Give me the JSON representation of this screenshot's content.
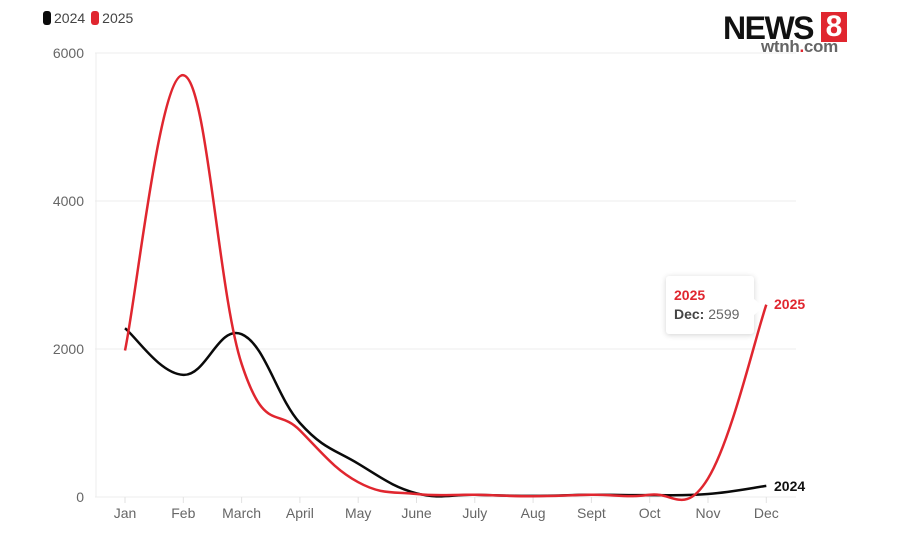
{
  "legend": [
    {
      "label": "2024",
      "color": "#0a0a0a"
    },
    {
      "label": "2025",
      "color": "#e0262f"
    }
  ],
  "logo": {
    "brand": "NEWS",
    "number": "8",
    "domain_prefix": "wtnh",
    "domain_dot": ".",
    "domain_suffix": "com"
  },
  "tooltip": {
    "series": "2025",
    "key": "Dec:",
    "value": "2599"
  },
  "end_labels": {
    "s2025": "2025",
    "s2024": "2024"
  },
  "chart_data": {
    "type": "line",
    "title": "",
    "xlabel": "",
    "ylabel": "",
    "categories": [
      "Jan",
      "Feb",
      "March",
      "April",
      "May",
      "June",
      "July",
      "Aug",
      "Sept",
      "Oct",
      "Nov",
      "Dec"
    ],
    "series": [
      {
        "name": "2024",
        "color": "#0a0a0a",
        "values": [
          2280,
          1650,
          2200,
          1000,
          450,
          50,
          30,
          15,
          30,
          25,
          40,
          150
        ]
      },
      {
        "name": "2025",
        "color": "#e0262f",
        "values": [
          1980,
          5700,
          1800,
          900,
          200,
          40,
          30,
          10,
          30,
          30,
          250,
          2599
        ]
      }
    ],
    "yticks": [
      0,
      2000,
      4000,
      6000
    ],
    "ylim": [
      0,
      6000
    ],
    "grid": true,
    "legend_position": "top-left",
    "smooth": true,
    "annotations": [
      {
        "series": "2025",
        "category": "Dec",
        "text": "Dec: 2599"
      }
    ]
  }
}
